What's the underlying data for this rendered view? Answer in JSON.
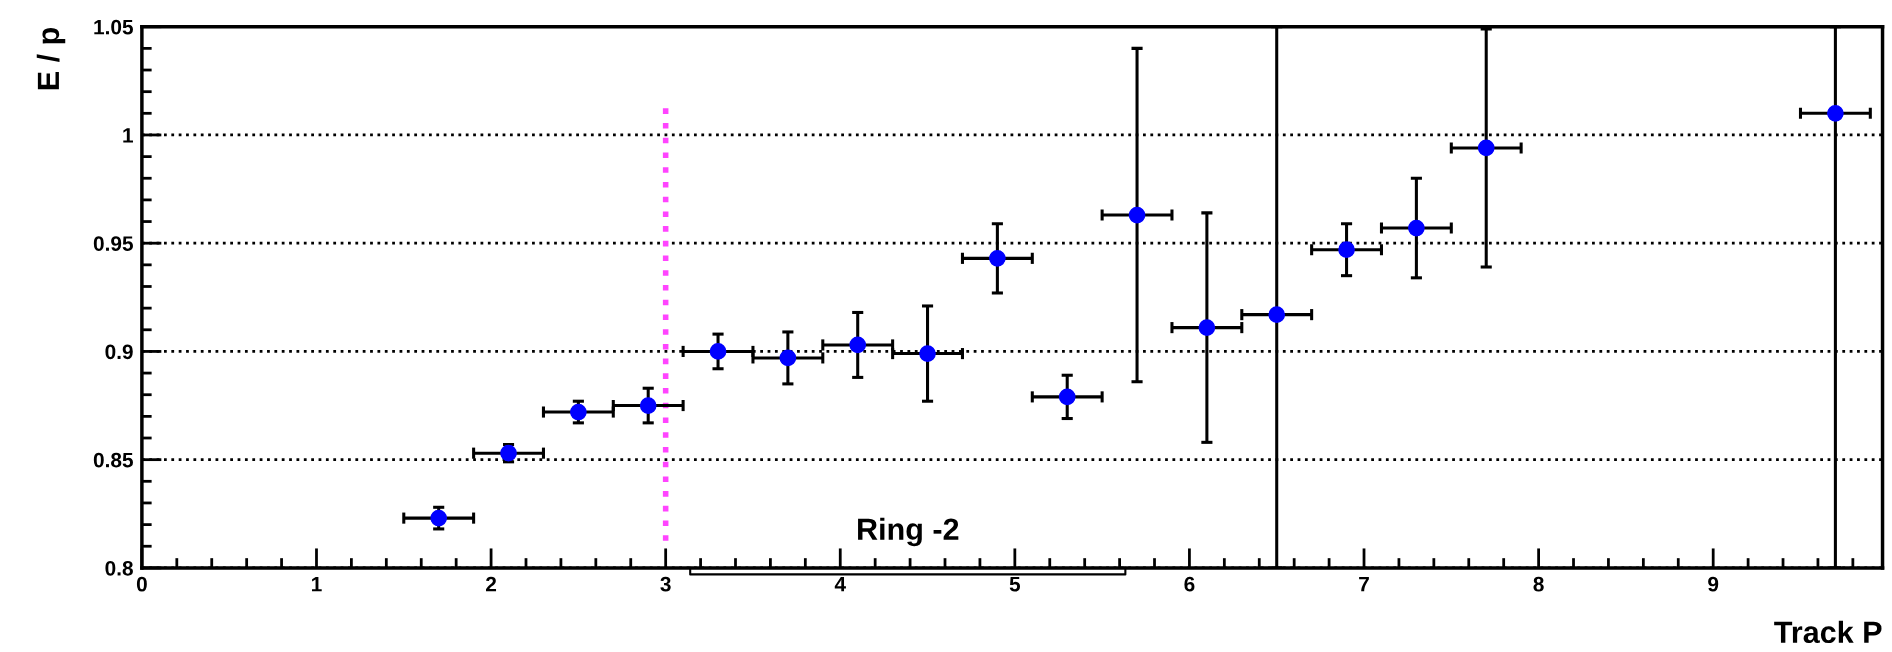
{
  "chart_data": {
    "type": "scatter",
    "xlabel": "Track P",
    "ylabel": "E / p",
    "x": [
      1.7,
      2.1,
      2.5,
      2.9,
      3.3,
      3.7,
      4.1,
      4.5,
      4.9,
      5.3,
      5.7,
      6.1,
      6.5,
      6.9,
      7.3,
      7.7,
      9.7
    ],
    "series": [
      {
        "color": "#0000ff",
        "values": [
          0.823,
          0.853,
          0.872,
          0.875,
          0.9,
          0.897,
          0.903,
          0.899,
          0.943,
          0.879,
          0.963,
          0.911,
          0.917,
          0.947,
          0.957,
          0.994,
          1.01
        ],
        "errors": [
          0.005,
          0.004,
          0.005,
          0.008,
          0.008,
          0.012,
          0.015,
          0.022,
          0.016,
          0.01,
          0.077,
          0.053,
          [
            0.8,
            1.05
          ],
          0.012,
          0.023,
          0.055,
          [
            0.8,
            1.05
          ]
        ],
        "xerrors": [
          0.2,
          0.2,
          0.2,
          0.2,
          0.2,
          0.2,
          0.2,
          0.2,
          0.2,
          0.2,
          0.2,
          0.2,
          0.2,
          0.2,
          0.2,
          0.2,
          0.2
        ]
      }
    ],
    "xlim": [
      0,
      9.97
    ],
    "xticks": [
      0,
      1,
      2,
      3,
      4,
      5,
      6,
      7,
      8,
      9
    ],
    "ylim": [
      0.8,
      1.05
    ],
    "yticks": [
      0.8,
      0.85,
      0.9,
      0.95,
      1,
      1.05
    ],
    "grid": "y",
    "marker": "circle",
    "ref_lines": [
      {
        "axis": "x",
        "value": 3,
        "color": "#ff44ff",
        "line_style": "dotted"
      }
    ],
    "annotations": [
      "Ring -2"
    ]
  }
}
